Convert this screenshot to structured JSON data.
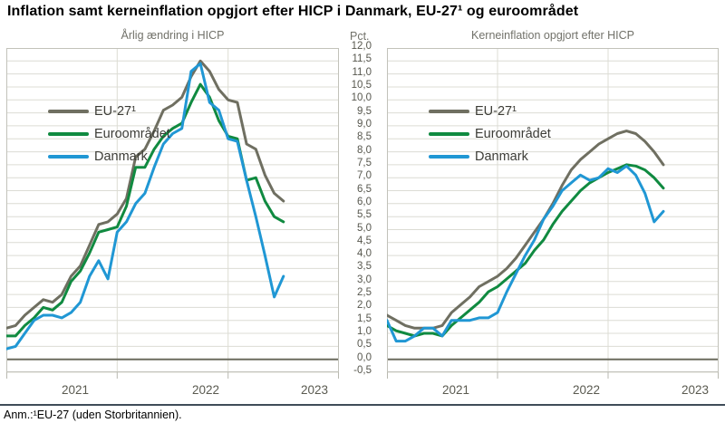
{
  "title": "Inflation samt kerneinflation opgjort efter HICP i Danmark, EU-27¹ og euroområdet",
  "note": "Anm.:¹EU-27 (uden Storbritannien).",
  "y_axis": {
    "unit_label": "Pct.",
    "tick_labels": [
      "12,0",
      "11,5",
      "11,0",
      "10,5",
      "10,0",
      "9,5",
      "9,0",
      "8,5",
      "8,0",
      "7,5",
      "7,0",
      "6,5",
      "6,0",
      "5,5",
      "5,0",
      "4,5",
      "4,0",
      "3,5",
      "3,0",
      "2,5",
      "2,0",
      "1,5",
      "1,0",
      "0,5",
      "0,0",
      "-0,5"
    ]
  },
  "chart_data": [
    {
      "type": "line",
      "title": "Årlig ændring i HICP",
      "x_start": "2021-01",
      "x_end": "2023-07",
      "x_tick_labels": [
        "2021",
        "2022",
        "2023"
      ],
      "x_label_month_centers": [
        7.5,
        21.6,
        33.4
      ],
      "x_total_months": 36,
      "ylabel": "Pct.",
      "ylim": [
        -0.5,
        12.0
      ],
      "ytick_step": 0.5,
      "grid": true,
      "legend_position": "top-left",
      "series": [
        {
          "name": "EU-27¹",
          "color": "#6f6f61",
          "values": [
            1.2,
            1.3,
            1.7,
            2.0,
            2.3,
            2.2,
            2.5,
            3.2,
            3.6,
            4.4,
            5.2,
            5.3,
            5.6,
            6.2,
            7.8,
            8.1,
            8.8,
            9.6,
            9.8,
            10.1,
            10.9,
            11.5,
            11.1,
            10.4,
            10.0,
            9.9,
            8.3,
            8.1,
            7.1,
            6.4,
            6.1
          ]
        },
        {
          "name": "Euroområdet",
          "color": "#108a40",
          "values": [
            0.9,
            0.9,
            1.3,
            1.6,
            2.0,
            1.9,
            2.2,
            3.0,
            3.4,
            4.1,
            4.9,
            5.0,
            5.1,
            5.9,
            7.4,
            7.4,
            8.1,
            8.6,
            8.9,
            9.1,
            9.9,
            10.6,
            10.1,
            9.2,
            8.6,
            8.5,
            6.9,
            7.0,
            6.1,
            5.5,
            5.3
          ]
        },
        {
          "name": "Danmark",
          "color": "#2097d4",
          "values": [
            0.4,
            0.5,
            1.0,
            1.5,
            1.7,
            1.7,
            1.6,
            1.8,
            2.2,
            3.2,
            3.8,
            3.1,
            4.9,
            5.3,
            6.0,
            6.4,
            7.4,
            8.3,
            8.7,
            8.9,
            11.1,
            11.4,
            9.9,
            9.6,
            8.5,
            8.4,
            6.9,
            5.5,
            4.0,
            2.4,
            3.2
          ]
        }
      ]
    },
    {
      "type": "line",
      "title": "Kerneinflation opgjort efter HICP",
      "x_start": "2021-01",
      "x_end": "2023-07",
      "x_tick_labels": [
        "2021",
        "2022",
        "2023"
      ],
      "x_label_month_centers": [
        7.5,
        21.6,
        33.4
      ],
      "x_total_months": 36,
      "ylabel": "Pct.",
      "ylim": [
        -0.5,
        12.0
      ],
      "ytick_step": 0.5,
      "grid": true,
      "legend_position": "top-left",
      "series": [
        {
          "name": "EU-27¹",
          "color": "#6f6f61",
          "values": [
            1.7,
            1.5,
            1.3,
            1.2,
            1.2,
            1.2,
            1.3,
            1.8,
            2.1,
            2.4,
            2.8,
            3.0,
            3.2,
            3.5,
            3.9,
            4.4,
            4.9,
            5.4,
            6.0,
            6.7,
            7.3,
            7.7,
            8.0,
            8.3,
            8.5,
            8.7,
            8.8,
            8.7,
            8.4,
            8.0,
            7.5
          ]
        },
        {
          "name": "Euroområdet",
          "color": "#108a40",
          "values": [
            1.3,
            1.1,
            1.0,
            0.9,
            1.0,
            1.0,
            0.9,
            1.3,
            1.6,
            1.9,
            2.2,
            2.6,
            2.8,
            3.1,
            3.4,
            3.7,
            4.2,
            4.6,
            5.2,
            5.7,
            6.1,
            6.5,
            6.8,
            7.0,
            7.2,
            7.35,
            7.5,
            7.45,
            7.3,
            7.0,
            6.6
          ]
        },
        {
          "name": "Danmark",
          "color": "#2097d4",
          "values": [
            1.5,
            0.7,
            0.7,
            0.9,
            1.2,
            1.2,
            0.9,
            1.5,
            1.5,
            1.5,
            1.6,
            1.6,
            1.8,
            2.6,
            3.3,
            4.0,
            4.6,
            5.4,
            5.9,
            6.5,
            6.8,
            7.1,
            6.9,
            7.0,
            7.35,
            7.2,
            7.45,
            7.1,
            6.4,
            5.3,
            5.7
          ]
        }
      ]
    }
  ],
  "style": {
    "gridline_color": "#dcdcd4",
    "border_color": "#c2c2ba",
    "zero_line_color": "#6b6b5e",
    "tick_color": "#b9b9b0"
  }
}
